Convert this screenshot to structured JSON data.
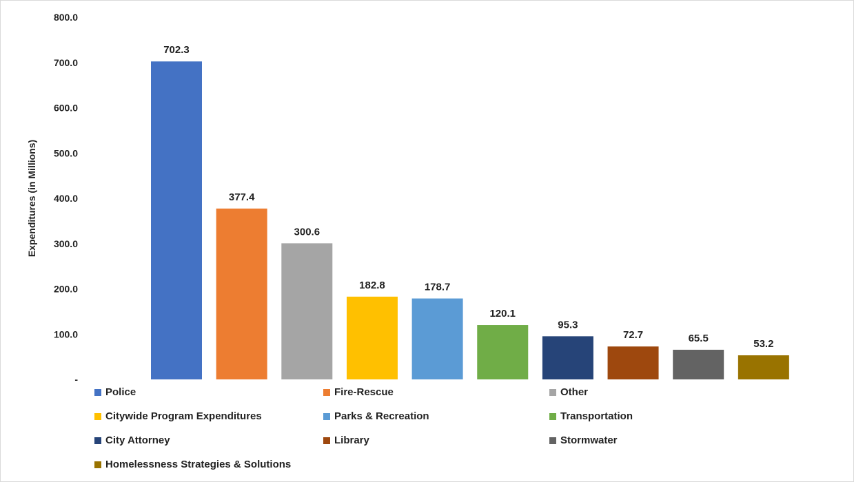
{
  "chart_data": {
    "type": "bar",
    "title": "",
    "xlabel": "",
    "ylabel": "Expenditures (in Millions)",
    "ylim": [
      0,
      800
    ],
    "yticks": [
      "-",
      "100.0",
      "200.0",
      "300.0",
      "400.0",
      "500.0",
      "600.0",
      "700.0",
      "800.0"
    ],
    "grid": false,
    "legend_position": "bottom",
    "categories": [
      "Police",
      "Fire-Rescue",
      "Other",
      "Citywide Program Expenditures",
      "Parks & Recreation",
      "Transportation",
      "City Attorney",
      "Library",
      "Stormwater",
      "Homelessness Strategies & Solutions"
    ],
    "values": [
      702.3,
      377.4,
      300.6,
      182.8,
      178.7,
      120.1,
      95.3,
      72.7,
      65.5,
      53.2
    ],
    "value_labels": [
      "702.3",
      "377.4",
      "300.6",
      "182.8",
      "178.7",
      "120.1",
      "95.3",
      "72.7",
      "65.5",
      "53.2"
    ],
    "colors": [
      "#4472c4",
      "#ed7d31",
      "#a5a5a5",
      "#ffc000",
      "#5b9bd5",
      "#70ad47",
      "#264478",
      "#9e480e",
      "#636363",
      "#997300"
    ]
  }
}
